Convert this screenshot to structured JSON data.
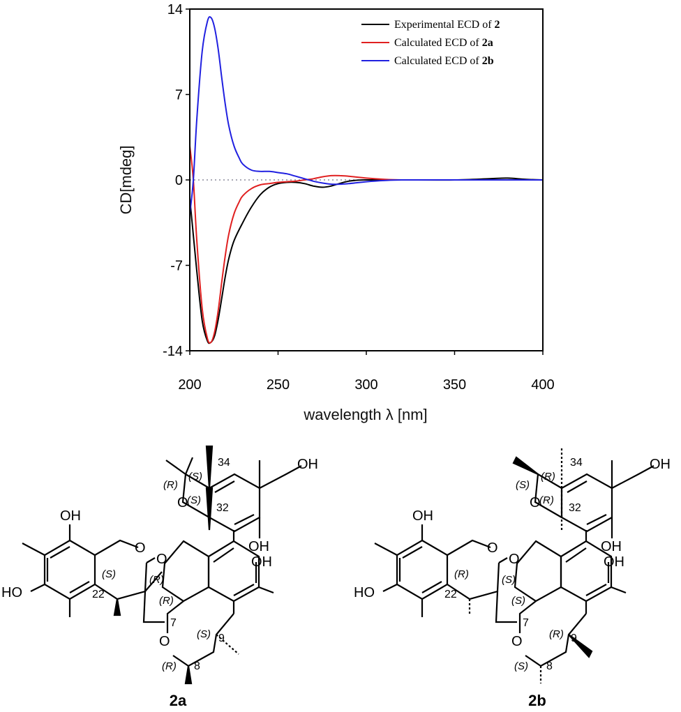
{
  "chart_data": {
    "type": "line",
    "xlabel": "wavelength λ [nm]",
    "ylabel": "CD[mdeg]",
    "xlim": [
      200,
      400
    ],
    "ylim": [
      -14,
      14
    ],
    "x_ticks": [
      200,
      250,
      300,
      350,
      400
    ],
    "y_ticks": [
      14,
      7,
      0,
      -7,
      -14
    ],
    "zero_line": "dotted",
    "legend_position": "top-right",
    "series": [
      {
        "name": "Experimental ECD of 2",
        "legend_prefix": "Experimental ECD of ",
        "legend_bold": "2",
        "color": "#000000",
        "x": [
          200,
          204,
          207,
          210,
          212,
          214,
          216,
          218,
          220,
          222,
          225,
          230,
          235,
          240,
          245,
          250,
          255,
          260,
          265,
          270,
          275,
          280,
          290,
          300,
          320,
          350,
          370,
          380,
          390,
          400
        ],
        "y": [
          -1.5,
          -7.5,
          -11.5,
          -13.2,
          -13.3,
          -12.8,
          -11.5,
          -9.8,
          -8.0,
          -6.5,
          -5.0,
          -3.5,
          -2.2,
          -1.2,
          -0.6,
          -0.3,
          -0.2,
          -0.2,
          -0.3,
          -0.5,
          -0.6,
          -0.5,
          -0.1,
          0.0,
          0.0,
          0.0,
          0.1,
          0.15,
          0.05,
          0.0
        ]
      },
      {
        "name": "Calculated ECD of 2a",
        "legend_prefix": "Calculated ECD of ",
        "legend_bold": "2a",
        "color": "#e02020",
        "x": [
          200,
          202,
          204,
          207,
          210,
          212,
          214,
          216,
          218,
          220,
          222,
          225,
          228,
          230,
          235,
          240,
          245,
          250,
          255,
          260,
          265,
          270,
          275,
          280,
          285,
          290,
          300,
          310,
          320,
          350,
          400
        ],
        "y": [
          2.8,
          0.0,
          -5.0,
          -10.5,
          -13.0,
          -13.3,
          -12.5,
          -10.8,
          -8.5,
          -6.3,
          -4.5,
          -2.8,
          -1.8,
          -1.3,
          -0.7,
          -0.4,
          -0.3,
          -0.2,
          -0.15,
          -0.1,
          0.0,
          0.1,
          0.25,
          0.35,
          0.35,
          0.3,
          0.15,
          0.05,
          0.0,
          0.0,
          0.0
        ]
      },
      {
        "name": "Calculated ECD of 2b",
        "legend_prefix": "Calculated ECD of ",
        "legend_bold": "2b",
        "color": "#2020e0",
        "x": [
          200,
          202,
          204,
          207,
          210,
          212,
          214,
          216,
          218,
          220,
          222,
          225,
          228,
          230,
          235,
          240,
          245,
          250,
          255,
          260,
          265,
          270,
          275,
          280,
          285,
          290,
          300,
          310,
          320,
          350,
          400
        ],
        "y": [
          -2.8,
          0.0,
          5.0,
          10.5,
          13.0,
          13.3,
          12.5,
          10.8,
          8.5,
          6.3,
          4.5,
          2.8,
          1.8,
          1.3,
          0.8,
          0.7,
          0.7,
          0.6,
          0.5,
          0.3,
          0.1,
          -0.1,
          -0.25,
          -0.35,
          -0.35,
          -0.3,
          -0.15,
          -0.05,
          0.0,
          0.0,
          0.0
        ]
      }
    ]
  },
  "structures": {
    "left": {
      "label": "2a",
      "groups": [
        "OH",
        "OH",
        "OH",
        "HO",
        "O",
        "O",
        "O"
      ],
      "locants": [
        "34",
        "32",
        "22",
        "7",
        "9",
        "8"
      ],
      "stereo": [
        "(R)",
        "(S)",
        "(S)",
        "(S)",
        "(R)",
        "(R)",
        "(S)",
        "(R)"
      ]
    },
    "right": {
      "label": "2b",
      "groups": [
        "OH",
        "OH",
        "OH",
        "HO",
        "O",
        "O",
        "O"
      ],
      "locants": [
        "34",
        "32",
        "22",
        "7",
        "9",
        "8"
      ],
      "stereo": [
        "(S)",
        "(R)",
        "(R)",
        "(R)",
        "(S)",
        "(S)",
        "(R)",
        "(S)"
      ]
    }
  }
}
